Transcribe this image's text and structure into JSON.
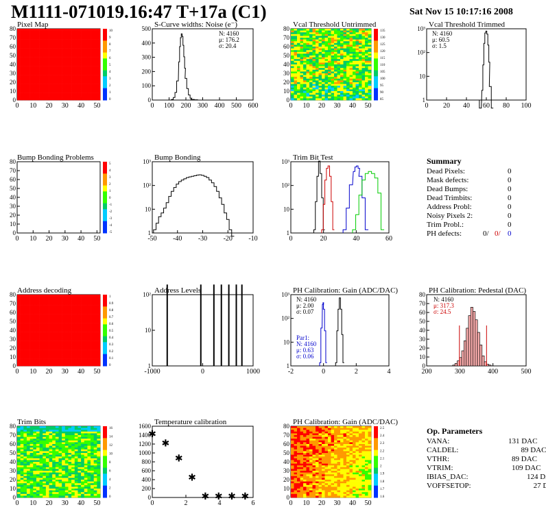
{
  "header": {
    "title": "M1111-071019.16:47 T+17a (C1)",
    "date": "Sat Nov 15 10:17:16 2008"
  },
  "colors": {
    "red_map": "#ff0000",
    "hist_line": "#000000",
    "trim_red": "#cc0000",
    "trim_blue": "#0000cc",
    "trim_green": "#00cc00"
  },
  "chart_data": [
    {
      "id": "pixel-map",
      "type": "heatmap",
      "title": "Pixel Map",
      "x_ticks": [
        "0",
        "10",
        "20",
        "30",
        "40",
        "50"
      ],
      "y_ticks": [
        "0",
        "10",
        "20",
        "30",
        "40",
        "50",
        "60",
        "70",
        "80"
      ],
      "xlim": [
        0,
        52
      ],
      "ylim": [
        0,
        80
      ],
      "fill": "uniform-red",
      "palette_ticks": [
        "10",
        "9",
        "8",
        "7",
        "6",
        "5",
        "4",
        "3",
        "2",
        "1",
        "0"
      ]
    },
    {
      "id": "scurve-noise",
      "type": "line",
      "title": "S-Curve widths: Noise (e⁻)",
      "x_ticks": [
        "0",
        "100",
        "200",
        "300",
        "400",
        "500",
        "600"
      ],
      "y_ticks": [
        "0",
        "100",
        "200",
        "300",
        "400",
        "500"
      ],
      "xlim": [
        0,
        600
      ],
      "ylim": [
        0,
        560
      ],
      "stats": [
        "N: 4160",
        "μ: 176.2",
        "σ: 20.4"
      ],
      "x": [
        100,
        120,
        130,
        140,
        150,
        160,
        165,
        170,
        175,
        180,
        185,
        190,
        195,
        200,
        210,
        220,
        230,
        240,
        260,
        280
      ],
      "y": [
        0,
        5,
        20,
        60,
        150,
        300,
        420,
        490,
        520,
        500,
        430,
        340,
        250,
        170,
        90,
        40,
        15,
        5,
        2,
        0
      ]
    },
    {
      "id": "vcal-untrimmed",
      "type": "heatmap",
      "title": "Vcal Threshold Untrimmed",
      "x_ticks": [
        "0",
        "10",
        "20",
        "30",
        "40",
        "50"
      ],
      "y_ticks": [
        "0",
        "10",
        "20",
        "30",
        "40",
        "50",
        "60",
        "70",
        "80"
      ],
      "xlim": [
        0,
        52
      ],
      "ylim": [
        0,
        80
      ],
      "palette_ticks": [
        "135",
        "130",
        "125",
        "120",
        "115",
        "110",
        "105",
        "100",
        "95",
        "90",
        "85"
      ]
    },
    {
      "id": "vcal-trimmed",
      "type": "line",
      "title": "Vcal Threshold Trimmed",
      "x_ticks": [
        "0",
        "20",
        "40",
        "60",
        "80",
        "100"
      ],
      "y_ticks": [
        "1",
        "10",
        "10²",
        "10³"
      ],
      "xlim": [
        0,
        100
      ],
      "log_y": true,
      "stats": [
        "N: 4160",
        "μ: 60.5",
        "σ:  1.5"
      ],
      "x": [
        54,
        56,
        57,
        58,
        59,
        60,
        61,
        62,
        63,
        64,
        66
      ],
      "y": [
        0,
        2,
        30,
        300,
        900,
        1100,
        800,
        250,
        40,
        3,
        0
      ]
    },
    {
      "id": "bump-bonding-problems",
      "type": "heatmap",
      "title": "Bump Bonding Problems",
      "x_ticks": [
        "0",
        "10",
        "20",
        "30",
        "40",
        "50"
      ],
      "y_ticks": [
        "0",
        "10",
        "20",
        "30",
        "40",
        "50",
        "60",
        "70",
        "80"
      ],
      "xlim": [
        0,
        52
      ],
      "ylim": [
        0,
        80
      ],
      "fill": "empty",
      "palette_ticks": [
        "5",
        "4",
        "3",
        "2",
        "1",
        "0",
        "-1",
        "-2",
        "-3",
        "-4",
        "-5"
      ]
    },
    {
      "id": "bump-bonding",
      "type": "line",
      "title": "Bump Bonding",
      "x_ticks": [
        "-50",
        "-40",
        "-30",
        "-20",
        "-10"
      ],
      "y_ticks": [
        "1",
        "10",
        "10²",
        "10³"
      ],
      "xlim": [
        -50,
        -10
      ],
      "log_y": true,
      "x": [
        -49,
        -48,
        -47,
        -46,
        -45,
        -44,
        -43,
        -42,
        -41,
        -40,
        -39,
        -38,
        -37,
        -36,
        -35,
        -34,
        -33,
        -32,
        -31,
        -30,
        -29,
        -28,
        -27,
        -26,
        -25,
        -24,
        -23,
        -22,
        -21,
        -20,
        -19,
        -18
      ],
      "y": [
        1,
        2,
        4,
        6,
        10,
        18,
        35,
        60,
        90,
        130,
        170,
        200,
        230,
        260,
        280,
        300,
        320,
        340,
        350,
        330,
        300,
        260,
        200,
        150,
        100,
        60,
        30,
        15,
        6,
        3,
        1,
        0.5
      ]
    },
    {
      "id": "trim-bit-test",
      "type": "line",
      "title": "Trim Bit Test",
      "x_ticks": [
        "0",
        "20",
        "40",
        "60"
      ],
      "y_ticks": [
        "1",
        "10",
        "10²",
        "10³"
      ],
      "xlim": [
        0,
        62
      ],
      "log_y": true,
      "series": [
        {
          "color": "black",
          "x": [
            15,
            16,
            17,
            18,
            19,
            20,
            21
          ],
          "y": [
            1,
            20,
            300,
            1500,
            400,
            30,
            1
          ]
        },
        {
          "color": "red",
          "x": [
            20,
            21,
            22,
            23,
            24,
            25,
            26,
            27
          ],
          "y": [
            1,
            15,
            200,
            700,
            900,
            300,
            20,
            1
          ]
        },
        {
          "color": "blue",
          "x": [
            34,
            36,
            38,
            40,
            41,
            42,
            43,
            44,
            46,
            48
          ],
          "y": [
            1,
            10,
            120,
            500,
            800,
            900,
            700,
            300,
            30,
            1
          ]
        },
        {
          "color": "green",
          "x": [
            40,
            42,
            44,
            46,
            48,
            50,
            52,
            54,
            56,
            58
          ],
          "y": [
            1,
            5,
            40,
            200,
            400,
            500,
            400,
            250,
            50,
            1
          ]
        }
      ]
    },
    {
      "id": "address-decoding",
      "type": "heatmap",
      "title": "Address decoding",
      "x_ticks": [
        "0",
        "10",
        "20",
        "30",
        "40",
        "50"
      ],
      "y_ticks": [
        "0",
        "10",
        "20",
        "30",
        "40",
        "50",
        "60",
        "70",
        "80"
      ],
      "xlim": [
        0,
        52
      ],
      "ylim": [
        0,
        80
      ],
      "fill": "uniform-red",
      "palette_ticks": [
        "1",
        "0.9",
        "0.8",
        "0.7",
        "0.6",
        "0.5",
        "0.4",
        "0.3",
        "0.2",
        "0.1",
        "0"
      ]
    },
    {
      "id": "address-levels",
      "type": "bar",
      "title": "Address Levels",
      "x_ticks": [
        "-1000",
        "0",
        "1000"
      ],
      "y_ticks": [
        "1",
        "10",
        "10²"
      ],
      "xlim": [
        -1400,
        1300
      ],
      "log_y": true,
      "x": [
        -1000,
        -100,
        250,
        450,
        650,
        850,
        1000
      ],
      "y": [
        300,
        300,
        300,
        300,
        300,
        300,
        300
      ]
    },
    {
      "id": "ph-gain",
      "type": "line",
      "title": "PH Calibration: Gain (ADC/DAC)",
      "x_ticks": [
        "-2",
        "0",
        "2",
        "4"
      ],
      "y_ticks": [
        "1",
        "10",
        "10²",
        "10³"
      ],
      "xlim": [
        -2,
        6
      ],
      "log_y": true,
      "stats": [
        "N: 4160",
        "μ: 2.00",
        "σ: 0.07"
      ],
      "stats2": [
        "Par1:",
        "N: 4160",
        "μ: 0.63",
        "σ: 0.06"
      ],
      "series": [
        {
          "color": "black",
          "x": [
            1.7,
            1.8,
            1.9,
            2.0,
            2.1,
            2.2,
            2.3
          ],
          "y": [
            1,
            30,
            300,
            1000,
            300,
            20,
            1
          ]
        },
        {
          "color": "blue",
          "x": [
            0.4,
            0.5,
            0.6,
            0.65,
            0.7,
            0.8,
            0.9
          ],
          "y": [
            1,
            40,
            500,
            600,
            300,
            30,
            1
          ]
        }
      ]
    },
    {
      "id": "ph-pedestal",
      "type": "bar",
      "title": "PH Calibration: Pedestal (DAC)",
      "x_ticks": [
        "200",
        "300",
        "400",
        "500"
      ],
      "y_ticks": [
        "0",
        "10",
        "20",
        "30",
        "40",
        "50",
        "60",
        "70",
        "80"
      ],
      "xlim": [
        120,
        560
      ],
      "ylim": [
        0,
        85
      ],
      "stats": [
        "N: 4160",
        "μ: 317.3",
        "σ: 24.5"
      ],
      "x": [
        240,
        250,
        260,
        270,
        280,
        290,
        300,
        310,
        320,
        330,
        340,
        350,
        360,
        370,
        380,
        390,
        400
      ],
      "y": [
        1,
        3,
        6,
        10,
        18,
        30,
        45,
        60,
        70,
        65,
        55,
        40,
        25,
        12,
        5,
        2,
        1
      ],
      "markers": [
        265,
        385
      ]
    },
    {
      "id": "trim-bits",
      "type": "heatmap",
      "title": "Trim Bits",
      "x_ticks": [
        "0",
        "10",
        "20",
        "30",
        "40",
        "50"
      ],
      "y_ticks": [
        "0",
        "10",
        "20",
        "30",
        "40",
        "50",
        "60",
        "70",
        "80"
      ],
      "xlim": [
        0,
        52
      ],
      "ylim": [
        0,
        80
      ],
      "palette_ticks": [
        "16",
        "14",
        "12",
        "10",
        "8",
        "6",
        "4",
        "2",
        "0"
      ]
    },
    {
      "id": "temperature-calibration",
      "type": "scatter",
      "title": "Temperature calibration",
      "x_ticks": [
        "0",
        "2",
        "4",
        "6"
      ],
      "y_ticks": [
        "0",
        "200",
        "400",
        "600",
        "800",
        "1000",
        "1200",
        "1400",
        "1600"
      ],
      "xlim": [
        0,
        7.6
      ],
      "ylim": [
        0,
        1700
      ],
      "x": [
        0,
        1,
        2,
        3,
        4,
        5,
        6,
        7
      ],
      "y": [
        1520,
        1300,
        940,
        480,
        30,
        30,
        30,
        30
      ]
    },
    {
      "id": "ph-gain-map",
      "type": "heatmap",
      "title": "PH Calibration: Gain (ADC/DAC)",
      "x_ticks": [
        "0",
        "10",
        "20",
        "30",
        "40",
        "50"
      ],
      "y_ticks": [
        "0",
        "10",
        "20",
        "30",
        "40",
        "50",
        "60",
        "70",
        "80"
      ],
      "xlim": [
        0,
        52
      ],
      "ylim": [
        0,
        80
      ],
      "palette_ticks": [
        "2.5",
        "2.4",
        "2.3",
        "2.2",
        "2.1",
        "2",
        "1.9",
        "1.8",
        "1.7",
        "1.6"
      ]
    }
  ],
  "summary": {
    "title": "Summary",
    "rows": [
      {
        "label": "Dead Pixels:",
        "value": "0"
      },
      {
        "label": "Mask defects:",
        "value": "0"
      },
      {
        "label": "Dead Bumps:",
        "value": "0"
      },
      {
        "label": "Dead Trimbits:",
        "value": "0"
      },
      {
        "label": "Address Probl:",
        "value": "0"
      },
      {
        "label": "Noisy Pixels 2:",
        "value": "0"
      },
      {
        "label": "Trim Probl.:",
        "value": "0"
      }
    ],
    "ph_label": "PH defects:",
    "ph_values": [
      "0/",
      "0/",
      "0"
    ]
  },
  "op_params": {
    "title": "Op. Parameters",
    "rows": [
      {
        "label": "VANA:",
        "value": "131 DAC"
      },
      {
        "label": "CALDEL:",
        "value": "89 DAC"
      },
      {
        "label": "VTHR:",
        "value": "89 DAC"
      },
      {
        "label": "VTRIM:",
        "value": "109 DAC"
      },
      {
        "label": "IBIAS_DAC:",
        "value": "124 DAC"
      },
      {
        "label": "VOFFSETOP:",
        "value": "27 DAC"
      }
    ]
  }
}
